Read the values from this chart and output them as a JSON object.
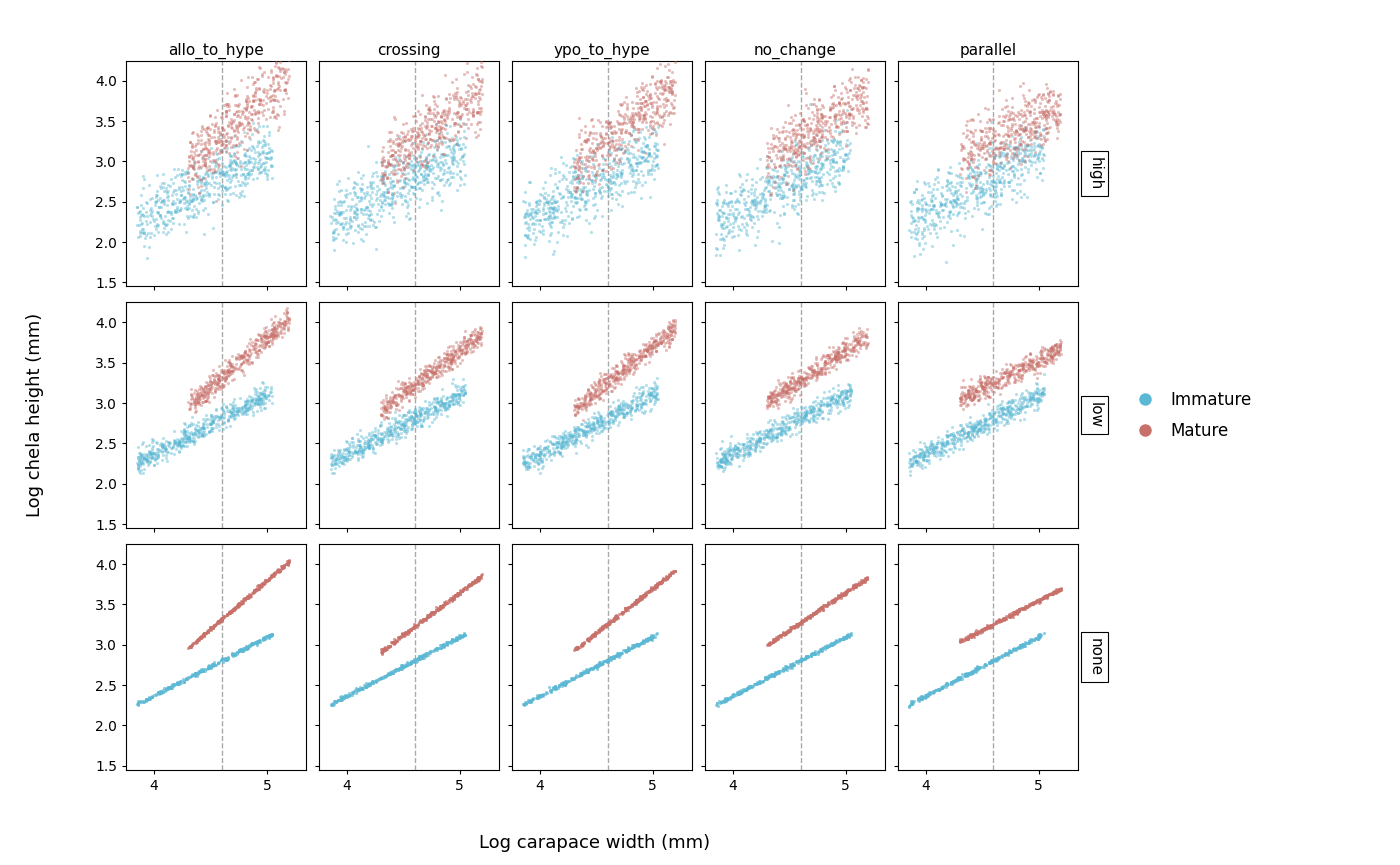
{
  "col_labels": [
    "allo_to_hype",
    "crossing",
    "ypo_to_hype",
    "no_change",
    "parallel"
  ],
  "row_labels": [
    "high",
    "low",
    "none"
  ],
  "xlabel": "Log carapace width (mm)",
  "ylabel": "Log chela height (mm)",
  "xlim": [
    3.75,
    5.35
  ],
  "ylim": [
    1.45,
    4.25
  ],
  "xticks": [
    4,
    5
  ],
  "yticks": [
    1.5,
    2.0,
    2.5,
    3.0,
    3.5,
    4.0
  ],
  "dashed_x": 4.6,
  "immature_color": "#5BB8D4",
  "mature_color": "#C8706A",
  "background_color": "#ffffff",
  "title_fontsize": 11,
  "label_fontsize": 13,
  "tick_fontsize": 10,
  "col_params": {
    "allo_to_hype": {
      "imm_a": -0.55,
      "imm_b": 0.73,
      "mat_a": -2.2,
      "mat_b": 1.2,
      "imm_x_lo": 3.85,
      "imm_x_hi": 5.05,
      "mat_x_lo": 4.3,
      "mat_x_hi": 5.2
    },
    "crossing": {
      "imm_a": -0.55,
      "imm_b": 0.73,
      "mat_a": -1.6,
      "mat_b": 1.05,
      "imm_x_lo": 3.85,
      "imm_x_hi": 5.05,
      "mat_x_lo": 4.3,
      "mat_x_hi": 5.2
    },
    "ypo_to_hype": {
      "imm_a": -0.55,
      "imm_b": 0.73,
      "mat_a": -1.8,
      "mat_b": 1.1,
      "imm_x_lo": 3.85,
      "imm_x_hi": 5.05,
      "mat_x_lo": 4.3,
      "mat_x_hi": 5.2
    },
    "no_change": {
      "imm_a": -0.55,
      "imm_b": 0.73,
      "mat_a": -1.0,
      "mat_b": 0.93,
      "imm_x_lo": 3.85,
      "imm_x_hi": 5.05,
      "mat_x_lo": 4.3,
      "mat_x_hi": 5.2
    },
    "parallel": {
      "imm_a": -0.55,
      "imm_b": 0.73,
      "mat_a": -0.1,
      "mat_b": 0.73,
      "imm_x_lo": 3.85,
      "imm_x_hi": 5.05,
      "mat_x_lo": 4.3,
      "mat_x_hi": 5.2
    }
  },
  "noise_high": 0.2,
  "noise_low": 0.07,
  "noise_none": 0.012,
  "n_imm_high": 550,
  "n_mat_high": 450,
  "n_imm_low": 550,
  "n_mat_low": 450,
  "n_imm_none": 300,
  "n_mat_none": 300,
  "point_size_high": 5,
  "point_size_low": 5,
  "point_size_none": 5,
  "alpha_high": 0.45,
  "alpha_low": 0.45,
  "alpha_none": 0.7
}
